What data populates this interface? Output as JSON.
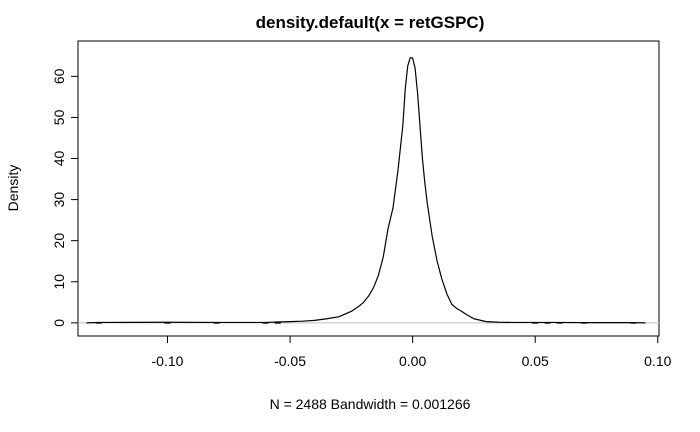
{
  "chart_data": {
    "type": "line",
    "title": "density.default(x = retGSPC)",
    "xlabel": "N = 2488   Bandwidth = 0.001266",
    "ylabel": "Density",
    "xlim": [
      -0.1365,
      0.1005
    ],
    "ylim": [
      -3.2,
      68.6
    ],
    "x_ticks": [
      -0.1,
      -0.05,
      0.0,
      0.05,
      0.1
    ],
    "x_tick_labels": [
      "-0.10",
      "-0.05",
      "0.00",
      "0.05",
      "0.10"
    ],
    "y_ticks": [
      0,
      10,
      20,
      30,
      40,
      50,
      60
    ],
    "y_tick_labels": [
      "0",
      "10",
      "20",
      "30",
      "40",
      "50",
      "60"
    ],
    "grid": false,
    "baseline": 0,
    "colors": {
      "line": "#000000",
      "baseline": "#bebebe"
    },
    "series": [
      {
        "x": [
          -0.133,
          -0.128,
          -0.1,
          -0.08,
          -0.06,
          -0.055,
          -0.05,
          -0.045,
          -0.04,
          -0.035,
          -0.03,
          -0.025,
          -0.022,
          -0.02,
          -0.018,
          -0.016,
          -0.014,
          -0.012,
          -0.01,
          -0.008,
          -0.006,
          -0.004,
          -0.003,
          -0.002,
          -0.001,
          0.0,
          0.001,
          0.002,
          0.003,
          0.004,
          0.005,
          0.006,
          0.008,
          0.01,
          0.012,
          0.014,
          0.016,
          0.018,
          0.02,
          0.022,
          0.025,
          0.03,
          0.035,
          0.04,
          0.05,
          0.06,
          0.07,
          0.09,
          0.095
        ],
        "y": [
          0.0,
          0.1,
          0.15,
          0.1,
          0.1,
          0.2,
          0.3,
          0.4,
          0.6,
          1.0,
          1.5,
          2.8,
          4.0,
          5.0,
          6.5,
          8.5,
          11.5,
          16.0,
          23.0,
          28.0,
          37.0,
          48.0,
          57.0,
          62.5,
          64.5,
          64.5,
          62.0,
          56.0,
          48.0,
          40.0,
          34.0,
          29.0,
          21.0,
          15.0,
          10.5,
          7.0,
          4.5,
          3.5,
          2.8,
          2.0,
          1.0,
          0.3,
          0.15,
          0.1,
          0.1,
          0.1,
          0.05,
          0.05,
          0.0
        ]
      }
    ],
    "rug_x": [
      -0.128,
      -0.1,
      -0.08,
      -0.06,
      -0.055,
      0.05,
      0.055,
      0.06,
      0.07,
      0.09
    ]
  }
}
